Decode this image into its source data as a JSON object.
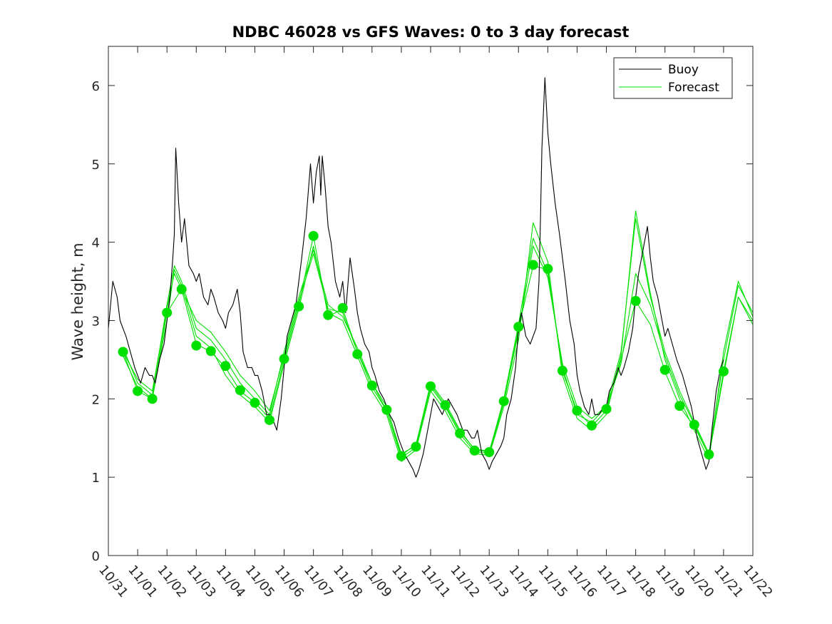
{
  "chart_data": {
    "type": "line",
    "title": "NDBC 46028 vs GFS Waves: 0 to 3 day forecast",
    "xlabel": "",
    "ylabel": "Wave height, m",
    "xlim": [
      0,
      22
    ],
    "ylim": [
      0,
      6.5
    ],
    "xticks": [
      0,
      1,
      2,
      3,
      4,
      5,
      6,
      7,
      8,
      9,
      10,
      11,
      12,
      13,
      14,
      15,
      16,
      17,
      18,
      19,
      20,
      21,
      22
    ],
    "xtick_labels": [
      "10/31",
      "11/01",
      "11/02",
      "11/03",
      "11/04",
      "11/05",
      "11/06",
      "11/07",
      "11/08",
      "11/09",
      "11/10",
      "11/11",
      "11/12",
      "11/13",
      "11/14",
      "11/15",
      "11/16",
      "11/17",
      "11/18",
      "11/19",
      "11/20",
      "11/21",
      "11/22"
    ],
    "yticks": [
      0,
      1,
      2,
      3,
      4,
      5,
      6
    ],
    "ytick_labels": [
      "0",
      "1",
      "2",
      "3",
      "4",
      "5",
      "6"
    ],
    "legend": {
      "position": "top-right",
      "entries": [
        {
          "label": "Buoy",
          "color": "#000000"
        },
        {
          "label": "Forecast",
          "color": "#00e000"
        }
      ]
    },
    "series": [
      {
        "name": "Buoy",
        "color": "#000000",
        "x": [
          0,
          0.15,
          0.3,
          0.4,
          0.5,
          0.6,
          0.75,
          0.9,
          1,
          1.1,
          1.25,
          1.4,
          1.5,
          1.6,
          1.75,
          1.9,
          2,
          2.1,
          2.2,
          2.25,
          2.3,
          2.4,
          2.5,
          2.6,
          2.75,
          2.9,
          3,
          3.1,
          3.25,
          3.4,
          3.5,
          3.6,
          3.75,
          3.9,
          4,
          4.1,
          4.25,
          4.4,
          4.5,
          4.6,
          4.75,
          4.9,
          5,
          5.1,
          5.25,
          5.4,
          5.5,
          5.6,
          5.75,
          5.9,
          6,
          6.1,
          6.25,
          6.4,
          6.5,
          6.6,
          6.75,
          6.9,
          7,
          7.1,
          7.2,
          7.25,
          7.3,
          7.4,
          7.5,
          7.6,
          7.75,
          7.9,
          8,
          8.1,
          8.25,
          8.4,
          8.5,
          8.6,
          8.75,
          8.9,
          9,
          9.1,
          9.25,
          9.4,
          9.5,
          9.6,
          9.75,
          9.9,
          10,
          10.1,
          10.25,
          10.4,
          10.5,
          10.6,
          10.75,
          10.9,
          11,
          11.1,
          11.25,
          11.4,
          11.5,
          11.6,
          11.75,
          11.9,
          12,
          12.1,
          12.25,
          12.4,
          12.5,
          12.6,
          12.75,
          12.9,
          13,
          13.1,
          13.25,
          13.4,
          13.5,
          13.6,
          13.75,
          13.9,
          14,
          14.1,
          14.25,
          14.4,
          14.5,
          14.6,
          14.7,
          14.75,
          14.8,
          14.9,
          15,
          15.1,
          15.25,
          15.4,
          15.5,
          15.6,
          15.75,
          15.9,
          16,
          16.1,
          16.25,
          16.4,
          16.5,
          16.6,
          16.75,
          16.9,
          17,
          17.1,
          17.25,
          17.4,
          17.5,
          17.6,
          17.75,
          17.9,
          18,
          18.1,
          18.25,
          18.4,
          18.5,
          18.6,
          18.75,
          18.9,
          19,
          19.1,
          19.25,
          19.4,
          19.5,
          19.6,
          19.75,
          19.9,
          20,
          20.1,
          20.25,
          20.4,
          20.5,
          20.6,
          20.75,
          20.9,
          21
        ],
        "y": [
          2.9,
          3.5,
          3.3,
          3,
          2.9,
          2.8,
          2.6,
          2.4,
          2.3,
          2.2,
          2.4,
          2.3,
          2.3,
          2.2,
          2.5,
          2.7,
          3,
          3.3,
          3.8,
          4.1,
          5.2,
          4.5,
          4,
          4.3,
          3.7,
          3.6,
          3.5,
          3.6,
          3.3,
          3.2,
          3.4,
          3.3,
          3.1,
          3,
          2.9,
          3.1,
          3.2,
          3.4,
          3.1,
          2.6,
          2.4,
          2.4,
          2.3,
          2.3,
          2.1,
          1.8,
          1.8,
          1.75,
          1.6,
          2,
          2.4,
          2.8,
          3,
          3.2,
          3.5,
          3.8,
          4.3,
          5,
          4.5,
          4.9,
          5.1,
          4.6,
          5.1,
          4.7,
          4.2,
          4,
          3.5,
          3.3,
          3.5,
          3.1,
          3.8,
          3.4,
          3.1,
          2.9,
          2.7,
          2.6,
          2.4,
          2.3,
          2.1,
          2,
          1.9,
          1.8,
          1.7,
          1.5,
          1.4,
          1.3,
          1.2,
          1.1,
          1,
          1.1,
          1.3,
          1.6,
          1.8,
          2,
          1.9,
          1.8,
          1.9,
          2,
          1.9,
          1.8,
          1.7,
          1.6,
          1.6,
          1.5,
          1.5,
          1.6,
          1.3,
          1.2,
          1.1,
          1.2,
          1.3,
          1.4,
          1.5,
          1.8,
          2,
          2.4,
          2.9,
          3.1,
          2.8,
          2.7,
          2.8,
          2.9,
          3.5,
          4.3,
          5.2,
          6.1,
          5.4,
          5,
          4.5,
          4.1,
          3.8,
          3.5,
          3,
          2.7,
          2.3,
          2.1,
          1.9,
          1.8,
          2,
          1.8,
          1.8,
          1.9,
          1.9,
          2.1,
          2.2,
          2.4,
          2.3,
          2.4,
          2.6,
          2.9,
          3.3,
          3.6,
          3.9,
          4.2,
          3.8,
          3.5,
          3.3,
          3,
          2.8,
          2.9,
          2.7,
          2.5,
          2.4,
          2.3,
          2.1,
          1.9,
          1.7,
          1.5,
          1.3,
          1.1,
          1.2,
          1.6,
          2.1,
          2.4,
          2.5
        ]
      },
      {
        "name": "Forecast run 1",
        "color": "#00e000",
        "x": [
          0.5,
          1,
          1.5,
          2,
          2.5,
          3,
          3.5,
          4,
          4.5,
          5,
          5.5,
          6,
          6.5,
          7,
          7.5,
          8,
          8.5,
          9,
          9.5,
          10,
          10.5,
          11,
          11.5,
          12,
          12.5,
          13,
          13.5,
          14,
          14.5,
          15,
          15.5,
          16,
          16.5,
          17,
          17.5,
          18,
          18.5,
          19,
          19.5,
          20,
          20.5,
          21,
          21.5,
          22
        ],
        "y": [
          2.6,
          2.1,
          2.0,
          3.1,
          3.4,
          2.7,
          2.6,
          2.4,
          2.1,
          1.95,
          1.75,
          2.5,
          3.2,
          4.08,
          3.05,
          3.15,
          2.6,
          2.15,
          1.85,
          1.25,
          1.38,
          2.15,
          1.9,
          1.55,
          1.33,
          1.3,
          1.95,
          2.9,
          3.7,
          3.65,
          2.35,
          1.85,
          1.65,
          1.85,
          2.5,
          3.25,
          2.95,
          2.35,
          1.9,
          1.65,
          1.28,
          2.35,
          3.3,
          3.0
        ]
      },
      {
        "name": "Forecast run 2",
        "color": "#00e000",
        "x": [
          0.5,
          1,
          1.5,
          2,
          2.25,
          2.5,
          3,
          3.5,
          4,
          4.5,
          5,
          5.5,
          6,
          6.5,
          7,
          7.5,
          8,
          8.5,
          9,
          9.5,
          10,
          10.5,
          11,
          11.5,
          12,
          12.5,
          13,
          13.5,
          14,
          14.5,
          15,
          15.5,
          16,
          16.5,
          17,
          17.5,
          18,
          18.5,
          19,
          19.5,
          20,
          20.5,
          21,
          21.5,
          22
        ],
        "y": [
          2.65,
          2.2,
          2.05,
          3.2,
          3.7,
          3.5,
          2.9,
          2.75,
          2.5,
          2.2,
          2.0,
          1.8,
          2.6,
          3.3,
          3.9,
          3.2,
          3.05,
          2.65,
          2.2,
          1.9,
          1.3,
          1.4,
          2.2,
          1.95,
          1.6,
          1.35,
          1.32,
          2.0,
          2.95,
          4.05,
          3.6,
          2.4,
          1.8,
          1.7,
          1.9,
          2.6,
          4.3,
          3.3,
          2.6,
          2.1,
          1.7,
          1.3,
          2.5,
          3.45,
          3.1
        ]
      },
      {
        "name": "Forecast run 3",
        "color": "#00e000",
        "x": [
          0.5,
          1,
          1.5,
          2,
          2.25,
          2.5,
          3,
          3.5,
          4,
          4.5,
          5,
          5.5,
          6,
          6.5,
          7,
          7.5,
          8,
          8.5,
          9,
          9.5,
          10,
          10.5,
          11,
          11.5,
          12,
          12.5,
          13,
          13.5,
          14,
          14.5,
          15,
          15.5,
          16,
          16.5,
          17,
          17.5,
          18,
          18.5,
          19,
          19.5,
          20,
          20.5,
          21,
          21.5,
          22
        ],
        "y": [
          2.55,
          2.15,
          2.0,
          3.0,
          3.65,
          3.45,
          2.8,
          2.65,
          2.3,
          2.05,
          1.9,
          1.7,
          2.45,
          3.15,
          3.95,
          3.1,
          3.0,
          2.55,
          2.1,
          1.8,
          1.2,
          1.35,
          2.1,
          1.85,
          1.5,
          1.3,
          1.28,
          1.9,
          2.75,
          4.25,
          3.75,
          2.3,
          1.75,
          1.6,
          1.8,
          2.55,
          4.4,
          3.35,
          2.5,
          2.0,
          1.6,
          1.22,
          2.6,
          3.5,
          3.05
        ]
      },
      {
        "name": "Forecast run 4",
        "color": "#00e000",
        "x": [
          0.5,
          1,
          1.5,
          2,
          2.25,
          2.5,
          3,
          3.5,
          4,
          4.5,
          5,
          5.5,
          6,
          6.5,
          7,
          7.5,
          8,
          8.5,
          9,
          9.5,
          10,
          10.5,
          11,
          11.5,
          12,
          12.5,
          13,
          13.5,
          14,
          14.5,
          15,
          15.5,
          16,
          16.5,
          17,
          17.5,
          18,
          18.5,
          19,
          19.5,
          20,
          20.5,
          21,
          21.5,
          22
        ],
        "y": [
          2.6,
          2.25,
          2.1,
          3.15,
          3.6,
          3.4,
          3.0,
          2.85,
          2.6,
          2.3,
          2.1,
          1.85,
          2.55,
          3.25,
          3.85,
          3.15,
          3.1,
          2.6,
          2.2,
          1.85,
          1.28,
          1.42,
          2.18,
          1.92,
          1.58,
          1.36,
          1.33,
          1.97,
          2.85,
          3.95,
          3.55,
          2.45,
          1.9,
          1.75,
          1.9,
          2.45,
          3.6,
          3.2,
          2.55,
          2.05,
          1.68,
          1.27,
          2.3,
          3.3,
          2.95
        ]
      }
    ],
    "markers": {
      "name": "Forecast analysis points",
      "color": "#00e000",
      "x": [
        0.5,
        1,
        1.5,
        2,
        2.5,
        3,
        3.5,
        4,
        4.5,
        5,
        5.5,
        6,
        6.5,
        7,
        7.5,
        8,
        8.5,
        9,
        9.5,
        10,
        10.5,
        11,
        11.5,
        12,
        12.5,
        13,
        13.5,
        14,
        14.5,
        15,
        15.5,
        16,
        16.5,
        17,
        18,
        19,
        19.5,
        20,
        20.5,
        21
      ],
      "y": [
        2.6,
        2.1,
        2.0,
        3.1,
        3.4,
        2.68,
        2.61,
        2.42,
        2.11,
        1.95,
        1.73,
        2.51,
        3.18,
        4.08,
        3.07,
        3.16,
        2.57,
        2.17,
        1.86,
        1.27,
        1.39,
        2.16,
        1.92,
        1.56,
        1.34,
        1.32,
        1.97,
        2.92,
        3.71,
        3.66,
        2.36,
        1.85,
        1.66,
        1.87,
        3.25,
        2.37,
        1.91,
        1.67,
        1.29,
        2.35
      ]
    }
  }
}
